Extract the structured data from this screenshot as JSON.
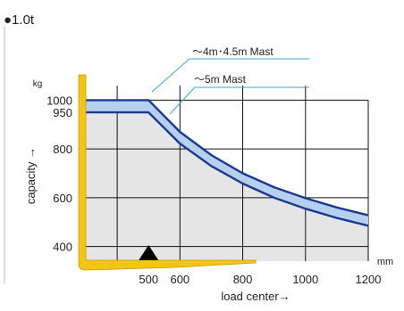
{
  "chart_data": {
    "type": "line",
    "title": "●1.0t",
    "xlabel": "load center→",
    "ylabel": "capacity →",
    "x_unit": "mm",
    "y_unit": "kg",
    "xlim": [
      300,
      1200
    ],
    "ylim": [
      340,
      1060
    ],
    "x_ticks": [
      500,
      600,
      800,
      1000,
      1200
    ],
    "x_gridlines": [
      400,
      600,
      800,
      1000
    ],
    "y_ticks": [
      400,
      600,
      800,
      950,
      1000
    ],
    "y_gridlines": [
      400,
      600,
      800,
      1000
    ],
    "grid": true,
    "series": [
      {
        "name": "～4m･4.5m Mast",
        "x": [
          300,
          500,
          600,
          700,
          800,
          900,
          1000,
          1100,
          1200
        ],
        "y": [
          1000,
          1000,
          870,
          775,
          700,
          643,
          598,
          560,
          528
        ]
      },
      {
        "name": "～5m Mast",
        "x": [
          300,
          500,
          600,
          700,
          800,
          900,
          1000,
          1100,
          1200
        ],
        "y": [
          950,
          950,
          822,
          730,
          658,
          600,
          555,
          517,
          485
        ]
      }
    ],
    "colors": {
      "band_fill": "#b8d0f0",
      "band_edge": "#1a3a8f",
      "fork": "#f3c515",
      "area": "#e5e5e5",
      "leader": "#3aa6dd"
    }
  }
}
